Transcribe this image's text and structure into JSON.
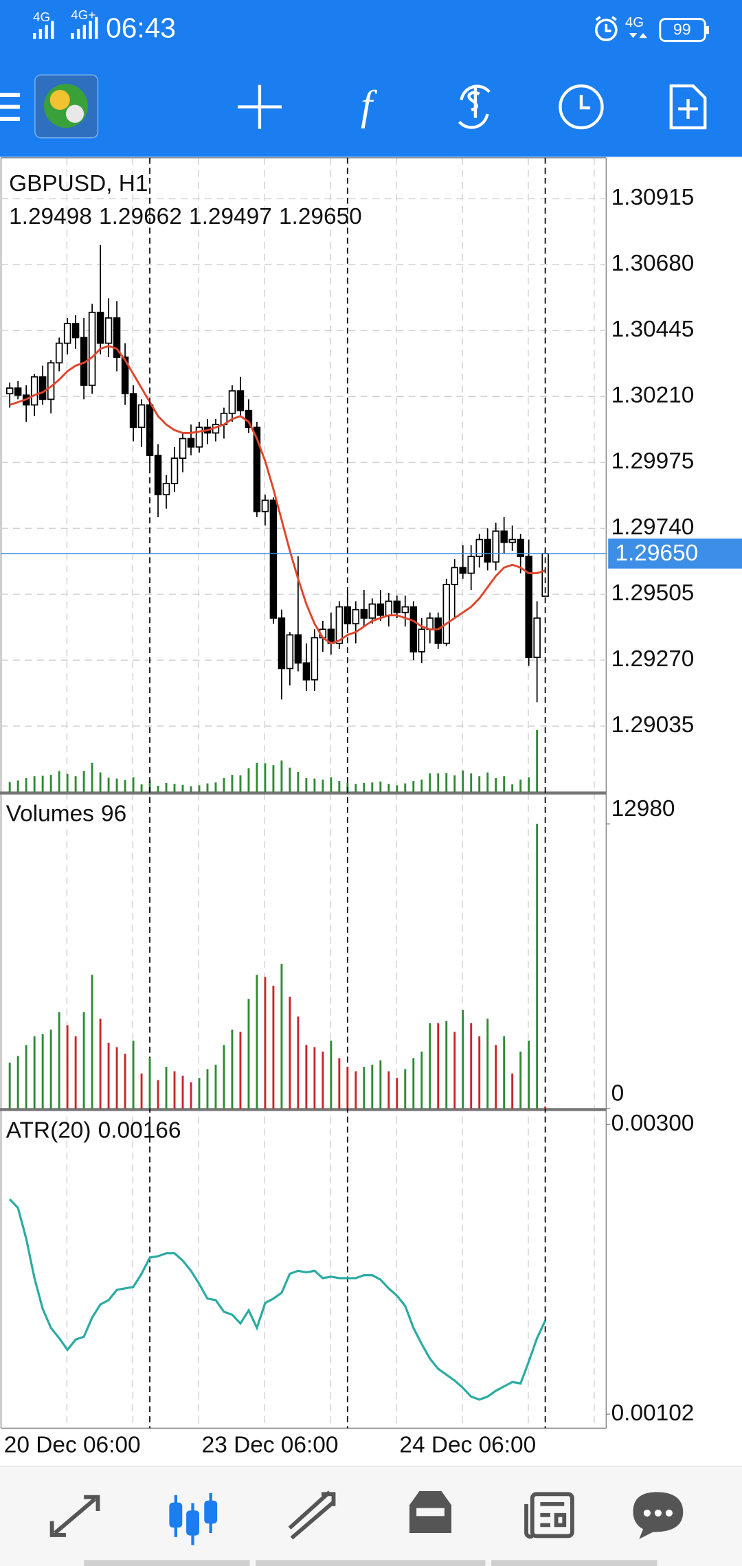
{
  "status_bar": {
    "signal_1": "4G",
    "signal_2": "4G+",
    "time": "06:43",
    "signal_3": "4G",
    "battery": "99"
  },
  "chart_data": [
    {
      "type": "candlestick",
      "title": "GBPUSD, H1",
      "quote_labels": [
        "1.29498",
        "1.29662",
        "1.29497",
        "1.29650"
      ],
      "categories": [
        null,
        null,
        null,
        null,
        null,
        null,
        null,
        null,
        null,
        null,
        null,
        null,
        null,
        null,
        null,
        null,
        null,
        "20 Dec 06:00",
        null,
        null,
        null,
        null,
        null,
        null,
        null,
        null,
        null,
        null,
        null,
        null,
        null,
        null,
        null,
        null,
        null,
        null,
        null,
        null,
        null,
        null,
        null,
        "23 Dec 06:00",
        null,
        null,
        null,
        null,
        null,
        null,
        null,
        null,
        null,
        null,
        null,
        null,
        null,
        null,
        null,
        null,
        null,
        null,
        null,
        null,
        null,
        null,
        null,
        "24 Dec 06:00"
      ],
      "open": [
        1.3022,
        1.3024,
        1.30215,
        1.3018,
        1.3028,
        1.302,
        1.3033,
        1.304,
        1.3047,
        1.3042,
        1.3025,
        1.3051,
        1.304,
        1.3049,
        1.3035,
        1.3022,
        1.301,
        1.3018,
        1.3,
        1.2986,
        1.299,
        1.2999,
        1.3006,
        1.3003,
        1.301,
        1.3008,
        1.3011,
        1.3015,
        1.3023,
        1.3016,
        1.301,
        1.298,
        1.2984,
        1.2942,
        1.2924,
        1.2936,
        1.2926,
        1.292,
        1.2935,
        1.2938,
        1.2933,
        1.2946,
        1.294,
        1.2945,
        1.2942,
        1.2947,
        1.2943,
        1.2948,
        1.2944,
        1.2946,
        1.293,
        1.2938,
        1.2942,
        1.2933,
        1.2954,
        1.296,
        1.2958,
        1.2964,
        1.297,
        1.2962,
        1.2973,
        1.2969,
        1.297,
        1.2964,
        1.2928,
        1.29498
      ],
      "high": [
        1.3026,
        1.30265,
        1.3025,
        1.3029,
        1.3032,
        1.3034,
        1.3042,
        1.3049,
        1.305,
        1.3049,
        1.3054,
        1.3075,
        1.3056,
        1.3055,
        1.304,
        1.3025,
        1.302,
        1.302,
        1.3004,
        1.2993,
        1.3003,
        1.3008,
        1.3011,
        1.3012,
        1.3013,
        1.3013,
        1.3017,
        1.3025,
        1.3028,
        1.302,
        1.3012,
        1.2986,
        1.2985,
        1.2945,
        1.2937,
        1.2964,
        1.2933,
        1.2938,
        1.2941,
        1.2944,
        1.2948,
        1.2952,
        1.2948,
        1.2952,
        1.2949,
        1.2952,
        1.2951,
        1.295,
        1.295,
        1.2948,
        1.2942,
        1.2944,
        1.2944,
        1.2956,
        1.2963,
        1.2968,
        1.2968,
        1.2972,
        1.2974,
        1.2976,
        1.2978,
        1.2975,
        1.2972,
        1.297,
        1.2948,
        1.29662
      ],
      "low": [
        1.3017,
        1.302,
        1.3012,
        1.3014,
        1.3018,
        1.3015,
        1.303,
        1.3036,
        1.3038,
        1.302,
        1.3022,
        1.3036,
        1.3035,
        1.303,
        1.3018,
        1.3005,
        1.3003,
        1.2995,
        1.2978,
        1.2981,
        1.2987,
        1.2994,
        1.3,
        1.3001,
        1.3004,
        1.3005,
        1.3006,
        1.3012,
        1.3014,
        1.3008,
        1.2978,
        1.2975,
        1.294,
        1.2913,
        1.2918,
        1.2923,
        1.2916,
        1.2916,
        1.293,
        1.2929,
        1.2931,
        1.2938,
        1.2933,
        1.2939,
        1.294,
        1.2941,
        1.2939,
        1.2942,
        1.2939,
        1.2927,
        1.2926,
        1.2933,
        1.2931,
        1.2932,
        1.2942,
        1.2956,
        1.2952,
        1.296,
        1.2959,
        1.2959,
        1.2965,
        1.2966,
        1.2958,
        1.2925,
        1.2912,
        1.29497
      ],
      "close": [
        1.3024,
        1.30215,
        1.3018,
        1.3028,
        1.302,
        1.3033,
        1.304,
        1.3047,
        1.3042,
        1.3025,
        1.3051,
        1.304,
        1.3049,
        1.3035,
        1.3022,
        1.301,
        1.3018,
        1.3,
        1.2986,
        1.299,
        1.2999,
        1.3006,
        1.3003,
        1.301,
        1.3008,
        1.3011,
        1.3015,
        1.3023,
        1.3016,
        1.301,
        1.298,
        1.2984,
        1.2942,
        1.2924,
        1.2936,
        1.2926,
        1.292,
        1.2935,
        1.2938,
        1.2933,
        1.2946,
        1.294,
        1.2945,
        1.2942,
        1.2947,
        1.2943,
        1.2948,
        1.2944,
        1.2946,
        1.293,
        1.2938,
        1.2942,
        1.2933,
        1.2954,
        1.296,
        1.2958,
        1.2964,
        1.297,
        1.2962,
        1.2973,
        1.2969,
        1.297,
        1.2964,
        1.2928,
        1.2942,
        1.2965
      ],
      "ma": {
        "color": "#e0452b",
        "values": [
          1.3018,
          1.3019,
          1.302,
          1.30215,
          1.30225,
          1.30245,
          1.3027,
          1.303,
          1.3032,
          1.3033,
          1.3035,
          1.3038,
          1.3039,
          1.3038,
          1.3034,
          1.3029,
          1.3024,
          1.3019,
          1.3014,
          1.3011,
          1.3009,
          1.3008,
          1.3008,
          1.30085,
          1.3009,
          1.301,
          1.3011,
          1.3013,
          1.3014,
          1.3012,
          1.3006,
          1.2998,
          1.2988,
          1.2977,
          1.2966,
          1.2956,
          1.2947,
          1.294,
          1.2935,
          1.2933,
          1.2934,
          1.2936,
          1.2937,
          1.2939,
          1.2941,
          1.2942,
          1.2943,
          1.2943,
          1.2942,
          1.2941,
          1.2939,
          1.2938,
          1.2938,
          1.294,
          1.2942,
          1.2944,
          1.2946,
          1.2949,
          1.2953,
          1.2957,
          1.296,
          1.2961,
          1.296,
          1.2958,
          1.2958,
          1.2959
        ]
      },
      "price_line_color": "#3d8ee6",
      "ylim": [
        1.288,
        1.31061
      ],
      "yticks": [
        1.30915,
        {
          "value": 1.3068,
          "label": "1.30680"
        },
        1.30445,
        {
          "value": 1.3021,
          "label": "1.30210"
        },
        1.29975,
        {
          "value": 1.2974,
          "label": "1.29740"
        },
        1.29505,
        {
          "value": 1.2927,
          "label": "1.29270"
        },
        1.29035
      ],
      "grid": true
    },
    {
      "type": "bar",
      "title": "Volumes",
      "values": [
        2100,
        2400,
        2900,
        3300,
        3400,
        3600,
        4400,
        3800,
        3300,
        4400,
        6100,
        4100,
        3000,
        2800,
        2500,
        3100,
        1600,
        2300,
        1300,
        1900,
        1700,
        1500,
        1200,
        1400,
        1800,
        2000,
        2900,
        3600,
        3500,
        5000,
        6100,
        6000,
        5600,
        6600,
        5100,
        4200,
        2900,
        2800,
        2600,
        3100,
        2300,
        1900,
        1700,
        1900,
        2000,
        2200,
        1700,
        1400,
        1800,
        2300,
        2600,
        3900,
        3900,
        4000,
        3500,
        4500,
        3900,
        3300,
        4100,
        2900,
        3300,
        1600,
        2600,
        3100,
        12980,
        96
      ],
      "up_color": "#2f8a35",
      "down_color": "#c8262a",
      "ylim": [
        0,
        12980
      ],
      "yticks": [
        12980,
        0
      ],
      "grid": false
    },
    {
      "type": "line",
      "title": "ATR(20)",
      "color": "#2aaba3",
      "values": [
        0.00249,
        0.00243,
        0.00222,
        0.00195,
        0.00174,
        0.00161,
        0.00154,
        0.00146,
        0.00153,
        0.00155,
        0.00168,
        0.00177,
        0.0018,
        0.00187,
        0.00188,
        0.00189,
        0.00198,
        0.00209,
        0.0021,
        0.00212,
        0.00212,
        0.00207,
        0.002,
        0.00191,
        0.00181,
        0.0018,
        0.00172,
        0.0017,
        0.00164,
        0.00173,
        0.00161,
        0.00178,
        0.00181,
        0.00185,
        0.00198,
        0.002,
        0.00199,
        0.002,
        0.00195,
        0.00196,
        0.00195,
        0.00195,
        0.00195,
        0.00197,
        0.00197,
        0.00194,
        0.00188,
        0.00183,
        0.00176,
        0.00161,
        0.0015,
        0.0014,
        0.00133,
        0.00129,
        0.00125,
        0.0012,
        0.00114,
        0.00112,
        0.00114,
        0.00118,
        0.00121,
        0.00124,
        0.00123,
        0.00138,
        0.00154,
        0.00166
      ],
      "ylim": [
        0.00102,
        0.003
      ],
      "yticks": [
        {
          "value": 0.003,
          "label": "0.00300"
        },
        0.00102
      ],
      "grid": false
    }
  ]
}
